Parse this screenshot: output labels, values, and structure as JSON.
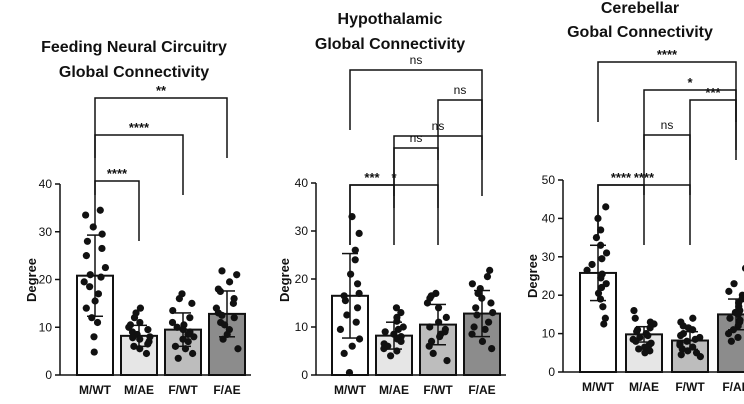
{
  "chart_data": [
    {
      "type": "bar",
      "title_lines": [
        "Feeding Neural Circuitry",
        "Global Connectivity"
      ],
      "ylabel": "Degree",
      "ylim": [
        0,
        40
      ],
      "yticks": [
        "0",
        "10",
        "20",
        "30",
        "40"
      ],
      "categories": [
        "M/WT",
        "M/AE",
        "F/WT",
        "F/AE"
      ],
      "values": [
        20.8,
        8.2,
        9.5,
        12.8
      ],
      "errors": [
        8.5,
        2.2,
        3.5,
        4.8
      ],
      "fills": [
        "#ffffff",
        "#e6e6e6",
        "#bdbdbd",
        "#8c8c8c"
      ],
      "points": [
        [
          34.5,
          33.5,
          31,
          29.5,
          28,
          26.5,
          25,
          22.5,
          21,
          20.5,
          19.5,
          18.5,
          17,
          15.5,
          14,
          12,
          11,
          8,
          4.8
        ],
        [
          14,
          13,
          12,
          11,
          10.5,
          10,
          9.5,
          9,
          8.5,
          8,
          7.8,
          7.5,
          7,
          6.5,
          6,
          5.5,
          4.5
        ],
        [
          17,
          16,
          15,
          13.5,
          12,
          11,
          10.5,
          10,
          9.5,
          9,
          8.5,
          8,
          7.5,
          7,
          6,
          5.5,
          4.5,
          3.5
        ],
        [
          21.8,
          21,
          19.5,
          18,
          17.5,
          16,
          15,
          14,
          13,
          12.5,
          12,
          11,
          10.5,
          9.5,
          8.5,
          7.5,
          5.5
        ]
      ],
      "comparisons": [
        {
          "from": 0,
          "to": 1,
          "label": "****"
        },
        {
          "from": 0,
          "to": 2,
          "label": "****"
        },
        {
          "from": 0,
          "to": 3,
          "label": "**"
        }
      ]
    },
    {
      "type": "bar",
      "title_lines": [
        "Hypothalamic",
        "Global Connectivity"
      ],
      "ylabel": "Degree",
      "ylim": [
        0,
        40
      ],
      "yticks": [
        "0",
        "10",
        "20",
        "30",
        "40"
      ],
      "categories": [
        "M/WT",
        "M/AE",
        "F/WT",
        "F/AE"
      ],
      "values": [
        16.5,
        8.2,
        10.5,
        12.8
      ],
      "errors": [
        8.8,
        2.8,
        4.2,
        4.8
      ],
      "fills": [
        "#ffffff",
        "#e6e6e6",
        "#bdbdbd",
        "#8c8c8c"
      ],
      "points": [
        [
          33,
          29.5,
          26,
          24,
          21,
          19,
          17,
          16.5,
          15.5,
          14,
          12.5,
          11,
          9.5,
          7.5,
          6,
          4.5,
          0.5
        ],
        [
          14,
          13,
          12,
          11.2,
          10,
          9.5,
          9,
          8.5,
          8,
          7.5,
          7,
          6.5,
          6,
          5.5,
          5,
          4
        ],
        [
          17,
          16.5,
          16,
          15,
          14,
          12,
          11,
          10,
          9.5,
          9,
          8.5,
          8,
          7,
          6,
          4.5,
          3
        ],
        [
          21.8,
          20.5,
          19,
          18,
          17,
          16,
          15,
          14,
          13,
          12.5,
          11,
          10,
          9.5,
          8.5,
          7,
          5.5
        ]
      ],
      "comparisons": [
        {
          "from": 0,
          "to": 1,
          "label": "***"
        },
        {
          "from": 1,
          "to": 2,
          "label": "ns"
        },
        {
          "from": 2,
          "to": 3,
          "label": "ns"
        },
        {
          "from": 0,
          "to": 2,
          "label": "*"
        },
        {
          "from": 1,
          "to": 3,
          "label": "ns"
        },
        {
          "from": 0,
          "to": 3,
          "label": "ns"
        }
      ]
    },
    {
      "type": "bar",
      "title_lines": [
        "Cerebellar",
        "Gobal Connectivity"
      ],
      "ylabel": "Degree",
      "ylim": [
        0,
        50
      ],
      "yticks": [
        "0",
        "10",
        "20",
        "30",
        "40",
        "50"
      ],
      "categories": [
        "M/WT",
        "M/AE",
        "F/WT",
        "F/AE"
      ],
      "values": [
        25.8,
        9.8,
        8.2,
        15.0
      ],
      "errors": [
        7.2,
        2.0,
        2.3,
        4.0
      ],
      "fills": [
        "#ffffff",
        "#e6e6e6",
        "#bdbdbd",
        "#8c8c8c"
      ],
      "points": [
        [
          43,
          40,
          37,
          35,
          33,
          31,
          29.5,
          28,
          26.5,
          25.5,
          24.5,
          23,
          22,
          20.5,
          19,
          17,
          14,
          12.5
        ],
        [
          16,
          14,
          13,
          12.5,
          11.5,
          11,
          10.5,
          10,
          9.5,
          9,
          8.5,
          8,
          7.5,
          7,
          6.5,
          6,
          5.5,
          5
        ],
        [
          14,
          13,
          12,
          11.5,
          11,
          10,
          9.5,
          9,
          8.5,
          8,
          7.5,
          7,
          6.5,
          6,
          5.5,
          5,
          4.5,
          4
        ],
        [
          27,
          23,
          21,
          20,
          19,
          18,
          17,
          16,
          15.5,
          15,
          14,
          13.5,
          13,
          12,
          11,
          10,
          9,
          8
        ]
      ],
      "comparisons": [
        {
          "from": 0,
          "to": 1,
          "label": "****"
        },
        {
          "from": 1,
          "to": 2,
          "label": "ns"
        },
        {
          "from": 2,
          "to": 3,
          "label": "***"
        },
        {
          "from": 0,
          "to": 2,
          "label": "****"
        },
        {
          "from": 1,
          "to": 3,
          "label": "*"
        },
        {
          "from": 0,
          "to": 3,
          "label": "****"
        }
      ]
    }
  ]
}
